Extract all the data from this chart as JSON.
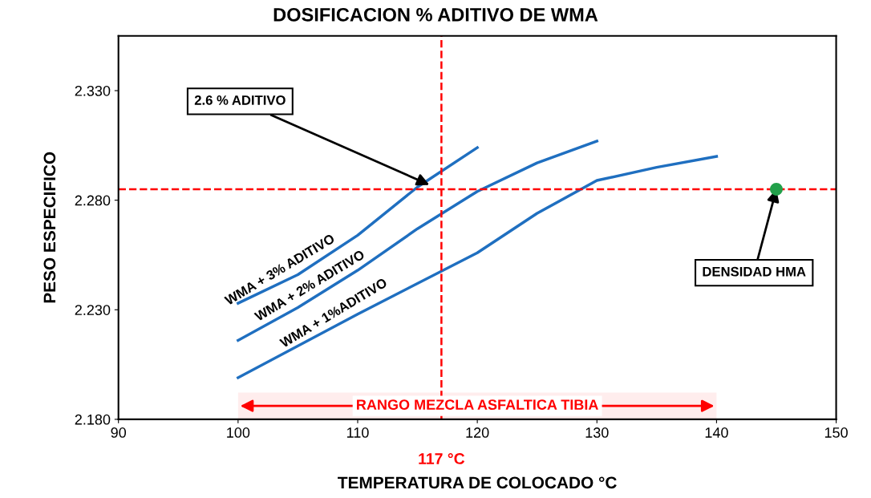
{
  "chart_data": {
    "type": "line",
    "title": "DOSIFICACION % ADITIVO DE WMA",
    "xlabel": "TEMPERATURA DE COLOCADO °C",
    "ylabel": "PESO ESPECIFICO",
    "xlim": [
      90,
      150
    ],
    "xticks": [
      90,
      100,
      110,
      120,
      130,
      140,
      150
    ],
    "ylim": [
      2.18,
      2.355
    ],
    "yticks": [
      {
        "value": 2.18,
        "label": "2.180"
      },
      {
        "value": 2.23,
        "label": "2.230"
      },
      {
        "value": 2.28,
        "label": "2.280"
      },
      {
        "value": 2.33,
        "label": "2.330"
      }
    ],
    "grid": false,
    "marker": "none",
    "line_style": "solid",
    "series": [
      {
        "name": "WMA + 3% ADITIVO",
        "color": "#1f6fc0",
        "x": [
          100,
          105,
          110,
          115,
          120
        ],
        "values": [
          2.233,
          2.246,
          2.264,
          2.286,
          2.304
        ]
      },
      {
        "name": "WMA + 2% ADITIVO",
        "color": "#1f6fc0",
        "x": [
          100,
          105,
          110,
          115,
          120,
          125,
          130
        ],
        "values": [
          2.216,
          2.231,
          2.248,
          2.267,
          2.284,
          2.297,
          2.307
        ]
      },
      {
        "name": "WMA + 1%ADITIVO",
        "color": "#1f6fc0",
        "x": [
          100,
          110,
          120,
          125,
          130,
          135,
          140
        ],
        "values": [
          2.199,
          2.228,
          2.256,
          2.274,
          2.289,
          2.295,
          2.3
        ]
      },
      {
        "type": "scatter",
        "marker": "circle",
        "color": "#22a04a",
        "x": [
          145
        ],
        "values": [
          2.285
        ]
      }
    ],
    "ref_lines": [
      {
        "axis": "y",
        "value": 2.285,
        "color": "#ff0000",
        "line_style": "dashed"
      },
      {
        "axis": "x",
        "value": 117,
        "label": "117 °C",
        "color": "#ff0000",
        "line_style": "dashed"
      }
    ],
    "bands": [
      {
        "axis": "x",
        "from": 100,
        "to": 140,
        "label": "RANGO MEZCLA ASFALTICA TIBIA",
        "color": "#ff0000"
      }
    ],
    "annotations": [
      {
        "text": "2.6 % ADITIVO",
        "x": 116,
        "y": 2.287
      },
      {
        "text": "DENSIDAD HMA",
        "x": 145,
        "y": 2.285
      }
    ]
  }
}
